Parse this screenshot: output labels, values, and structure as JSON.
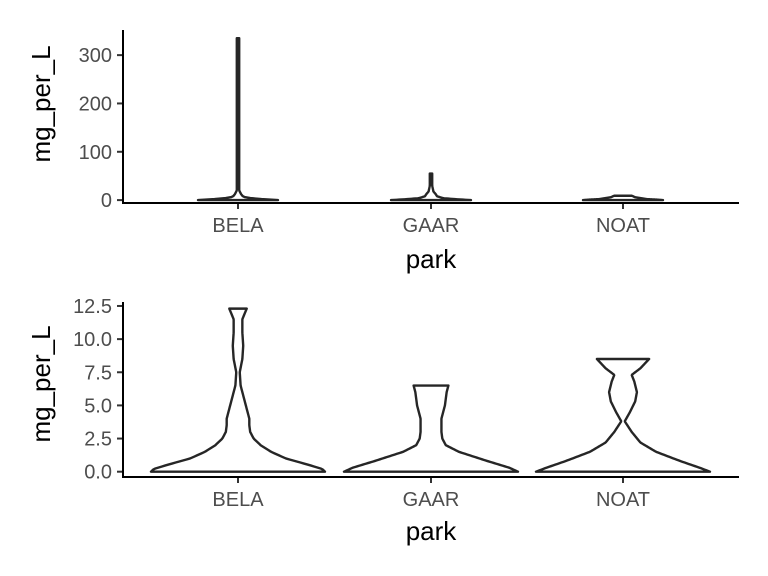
{
  "chart_data": [
    {
      "type": "violin",
      "xlabel": "park",
      "ylabel": "mg_per_L",
      "categories": [
        "BELA",
        "GAAR",
        "NOAT"
      ],
      "ylim": [
        -6,
        352
      ],
      "y_ticks": [
        0,
        100,
        200,
        300
      ],
      "y_tick_labels": [
        "0",
        "100",
        "200",
        "300"
      ],
      "grid": false,
      "violins": [
        {
          "category": "BELA",
          "range": [
            0,
            335
          ],
          "profile": [
            [
              0,
              1.0
            ],
            [
              2,
              0.6
            ],
            [
              5,
              0.2
            ],
            [
              8,
              0.12
            ],
            [
              12,
              0.08
            ],
            [
              20,
              0.03
            ],
            [
              40,
              0.02
            ],
            [
              80,
              0.015
            ],
            [
              160,
              0.012
            ],
            [
              335,
              0.012
            ]
          ]
        },
        {
          "category": "GAAR",
          "range": [
            0,
            55
          ],
          "profile": [
            [
              0,
              1.0
            ],
            [
              2,
              0.6
            ],
            [
              4,
              0.3
            ],
            [
              8,
              0.15
            ],
            [
              12,
              0.12
            ],
            [
              18,
              0.06
            ],
            [
              30,
              0.03
            ],
            [
              55,
              0.015
            ]
          ]
        },
        {
          "category": "NOAT",
          "range": [
            0,
            9
          ],
          "profile": [
            [
              0,
              1.0
            ],
            [
              1,
              0.85
            ],
            [
              2,
              0.6
            ],
            [
              4,
              0.45
            ],
            [
              6,
              0.3
            ],
            [
              8,
              0.25
            ],
            [
              9,
              0.22
            ]
          ]
        }
      ]
    },
    {
      "type": "violin",
      "xlabel": "park",
      "ylabel": "mg_per_L",
      "categories": [
        "BELA",
        "GAAR",
        "NOAT"
      ],
      "ylim": [
        -0.4,
        12.8
      ],
      "y_ticks": [
        0,
        2.5,
        5,
        7.5,
        10,
        12.5
      ],
      "y_tick_labels": [
        "0.0",
        "2.5",
        "5.0",
        "7.5",
        "10.0",
        "12.5"
      ],
      "grid": false,
      "violins": [
        {
          "category": "BELA",
          "range": [
            0,
            12.3
          ],
          "profile": [
            [
              0,
              1.0
            ],
            [
              0.2,
              0.97
            ],
            [
              0.5,
              0.82
            ],
            [
              1,
              0.55
            ],
            [
              1.5,
              0.38
            ],
            [
              2,
              0.26
            ],
            [
              2.5,
              0.18
            ],
            [
              3,
              0.14
            ],
            [
              3.5,
              0.13
            ],
            [
              4,
              0.13
            ],
            [
              4.5,
              0.11
            ],
            [
              5.5,
              0.07
            ],
            [
              6.5,
              0.03
            ],
            [
              7.5,
              0.02
            ],
            [
              8.5,
              0.05
            ],
            [
              9.5,
              0.06
            ],
            [
              10.5,
              0.05
            ],
            [
              11.5,
              0.05
            ],
            [
              12.3,
              0.1
            ]
          ]
        },
        {
          "category": "GAAR",
          "range": [
            0,
            6.5
          ],
          "profile": [
            [
              0,
              1.0
            ],
            [
              0.3,
              0.9
            ],
            [
              0.8,
              0.65
            ],
            [
              1.5,
              0.32
            ],
            [
              2,
              0.17
            ],
            [
              2.5,
              0.13
            ],
            [
              3,
              0.12
            ],
            [
              4,
              0.12
            ],
            [
              4.5,
              0.14
            ],
            [
              5,
              0.16
            ],
            [
              5.5,
              0.17
            ],
            [
              6,
              0.18
            ],
            [
              6.5,
              0.2
            ]
          ]
        },
        {
          "category": "NOAT",
          "range": [
            0,
            8.5
          ],
          "profile": [
            [
              0,
              1.0
            ],
            [
              0.3,
              0.88
            ],
            [
              0.8,
              0.66
            ],
            [
              1.5,
              0.38
            ],
            [
              2.2,
              0.2
            ],
            [
              3,
              0.1
            ],
            [
              3.8,
              0.02
            ],
            [
              4.5,
              0.08
            ],
            [
              5.3,
              0.14
            ],
            [
              6,
              0.16
            ],
            [
              6.8,
              0.13
            ],
            [
              7.3,
              0.1
            ],
            [
              7.8,
              0.2
            ],
            [
              8.5,
              0.3
            ]
          ]
        }
      ]
    }
  ]
}
